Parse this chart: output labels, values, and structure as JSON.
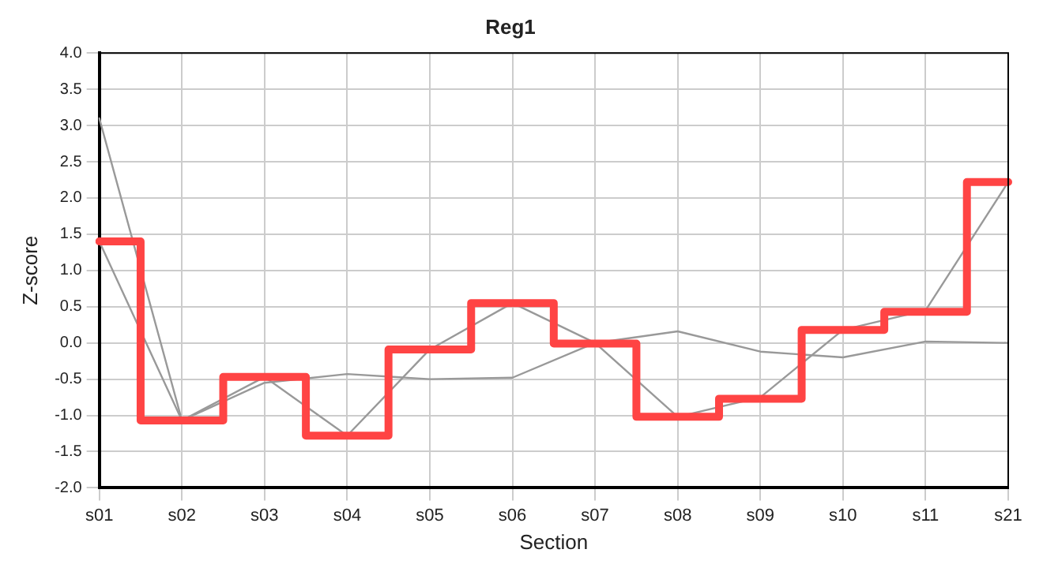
{
  "chart_data": {
    "type": "line",
    "title": "Reg1",
    "xlabel": "Section",
    "ylabel": "Z-score",
    "categories": [
      "s01",
      "s02",
      "s03",
      "s04",
      "s05",
      "s06",
      "s07",
      "s08",
      "s09",
      "s10",
      "s11",
      "s21"
    ],
    "series": [
      {
        "type": "line",
        "color": "#999999",
        "values": [
          1.4,
          -1.07,
          -0.47,
          -1.28,
          -0.09,
          0.55,
          0.0,
          -1.02,
          -0.75,
          0.18,
          0.45,
          2.22
        ]
      },
      {
        "type": "line",
        "color": "#999999",
        "values": [
          3.1,
          -1.07,
          -0.55,
          -0.43,
          -0.5,
          -0.48,
          0.0,
          0.16,
          -0.12,
          -0.2,
          0.02,
          0.0
        ]
      },
      {
        "type": "step",
        "color": "#ff4444",
        "values": [
          1.4,
          -1.07,
          -0.47,
          -1.28,
          -0.09,
          0.55,
          -0.01,
          -1.02,
          -0.77,
          0.18,
          0.43,
          2.22
        ]
      }
    ],
    "ylim": [
      -2,
      4
    ],
    "yticks": [
      {
        "value": -2,
        "label": "-2.0"
      },
      {
        "value": -1.5,
        "label": "-1.5"
      },
      {
        "value": -1,
        "label": "-1.0"
      },
      {
        "value": -0.5,
        "label": "-0.5"
      },
      {
        "value": 0,
        "label": "0.0"
      },
      {
        "value": 0.5,
        "label": "0.5"
      },
      {
        "value": 1,
        "label": "1.0"
      },
      {
        "value": 1.5,
        "label": "1.5"
      },
      {
        "value": 2,
        "label": "2.0"
      },
      {
        "value": 2.5,
        "label": "2.5"
      },
      {
        "value": 3,
        "label": "3.0"
      },
      {
        "value": 3.5,
        "label": "3.5"
      },
      {
        "value": 4,
        "label": "4.0"
      }
    ],
    "grid": true,
    "legend": false,
    "marker": "none",
    "line_style": "solid"
  }
}
